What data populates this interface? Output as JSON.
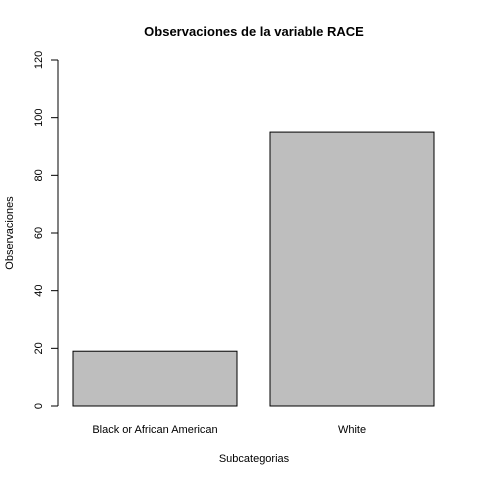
{
  "chart_data": {
    "type": "bar",
    "title": "Observaciones de la variable RACE",
    "xlabel": "Subcategorias",
    "ylabel": "Observaciones",
    "categories": [
      "Black or African American",
      "White"
    ],
    "values": [
      19,
      95
    ],
    "ylim": [
      0,
      120
    ],
    "yticks": [
      0,
      20,
      40,
      60,
      80,
      100,
      120
    ],
    "bar_fill": "#bebebe",
    "bar_stroke": "#000000",
    "grid": false,
    "legend": "none"
  }
}
